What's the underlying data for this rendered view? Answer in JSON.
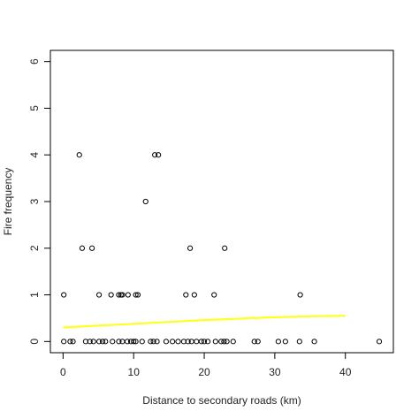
{
  "chart_data": {
    "type": "scatter",
    "title": "",
    "xlabel": "Distance to secondary roads (km)",
    "ylabel": "Fire frequency",
    "xlim": [
      -1.8,
      46.8
    ],
    "ylim": [
      -0.24,
      6.24
    ],
    "x_ticks": [
      0,
      10,
      20,
      30,
      40
    ],
    "y_ticks": [
      0,
      1,
      2,
      3,
      4,
      5,
      6
    ],
    "grid": false,
    "legend": "none",
    "series": [
      {
        "marker": "open-circle",
        "color": "#000000",
        "points": [
          [
            0.1,
            0
          ],
          [
            1.0,
            0
          ],
          [
            1.4,
            0
          ],
          [
            3.2,
            0
          ],
          [
            3.8,
            0
          ],
          [
            4.3,
            0
          ],
          [
            5.1,
            0
          ],
          [
            5.6,
            0
          ],
          [
            6.0,
            0
          ],
          [
            7.0,
            0
          ],
          [
            7.9,
            0
          ],
          [
            8.4,
            0
          ],
          [
            9.1,
            0
          ],
          [
            9.6,
            0
          ],
          [
            10.0,
            0
          ],
          [
            10.3,
            0
          ],
          [
            11.2,
            0
          ],
          [
            12.4,
            0
          ],
          [
            12.8,
            0
          ],
          [
            13.3,
            0
          ],
          [
            14.6,
            0
          ],
          [
            15.5,
            0
          ],
          [
            16.3,
            0
          ],
          [
            17.1,
            0
          ],
          [
            17.7,
            0
          ],
          [
            18.2,
            0
          ],
          [
            18.9,
            0
          ],
          [
            19.6,
            0
          ],
          [
            20.0,
            0
          ],
          [
            20.5,
            0
          ],
          [
            21.6,
            0
          ],
          [
            22.4,
            0
          ],
          [
            22.8,
            0
          ],
          [
            23.2,
            0
          ],
          [
            24.1,
            0
          ],
          [
            27.1,
            0
          ],
          [
            27.6,
            0
          ],
          [
            30.5,
            0
          ],
          [
            31.5,
            0
          ],
          [
            33.5,
            0
          ],
          [
            35.6,
            0
          ],
          [
            44.8,
            0
          ],
          [
            0.1,
            1
          ],
          [
            5.1,
            1
          ],
          [
            6.8,
            1
          ],
          [
            7.9,
            1
          ],
          [
            8.2,
            1
          ],
          [
            8.4,
            1
          ],
          [
            9.2,
            1
          ],
          [
            10.3,
            1
          ],
          [
            10.6,
            1
          ],
          [
            17.4,
            1
          ],
          [
            18.6,
            1
          ],
          [
            21.4,
            1
          ],
          [
            33.6,
            1
          ],
          [
            2.7,
            2
          ],
          [
            4.1,
            2
          ],
          [
            18.0,
            2
          ],
          [
            22.9,
            2
          ],
          [
            11.7,
            3
          ],
          [
            2.3,
            4
          ],
          [
            13.0,
            4
          ],
          [
            13.5,
            4
          ]
        ]
      },
      {
        "name": "",
        "type": "line",
        "color": "#ffff22",
        "points": [
          [
            0,
            0.3
          ],
          [
            5,
            0.34
          ],
          [
            10,
            0.38
          ],
          [
            15,
            0.42
          ],
          [
            20,
            0.46
          ],
          [
            25,
            0.49
          ],
          [
            30,
            0.52
          ],
          [
            35,
            0.54
          ],
          [
            40,
            0.55
          ]
        ]
      }
    ]
  }
}
